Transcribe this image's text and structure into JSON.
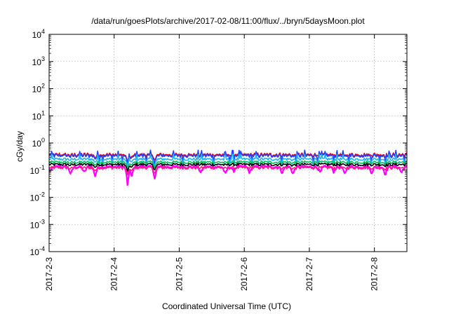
{
  "chart_data": {
    "type": "line",
    "title": "/data/run/goesPlots/archive/2017-02-08/11:00/flux/../bryn/5daysMoon.plot",
    "xlabel": "Coordinated Universal Time (UTC)",
    "ylabel": "cGy/day",
    "yscale": "log",
    "ylim": [
      0.0001,
      10000
    ],
    "xlim": [
      "2017-02-03",
      "2017-02-08 12:00"
    ],
    "grid": true,
    "x_ticks": [
      "2017-2-3",
      "2017-2-4",
      "2017-2-5",
      "2017-2-6",
      "2017-2-7",
      "2017-2-8"
    ],
    "y_ticks": [
      {
        "value": 0.0001,
        "base": "10",
        "exp": "-4"
      },
      {
        "value": 0.001,
        "base": "10",
        "exp": "-3"
      },
      {
        "value": 0.01,
        "base": "10",
        "exp": "-2"
      },
      {
        "value": 0.1,
        "base": "10",
        "exp": "-1"
      },
      {
        "value": 1,
        "base": "10",
        "exp": "0"
      },
      {
        "value": 10,
        "base": "10",
        "exp": "1"
      },
      {
        "value": 100,
        "base": "10",
        "exp": "2"
      },
      {
        "value": 1000,
        "base": "10",
        "exp": "3"
      },
      {
        "value": 10000,
        "base": "10",
        "exp": "4"
      }
    ],
    "series": [
      {
        "color": "#ff00ff",
        "base": 0.135,
        "spiky": true
      },
      {
        "color": "#e8001c",
        "base": 0.38
      },
      {
        "color": "#2040ff",
        "base": 0.35
      },
      {
        "color": "#20b4f0",
        "base": 0.26
      },
      {
        "color": "#00c060",
        "base": 0.2
      },
      {
        "color": "#000000",
        "base": 0.165
      },
      {
        "color": "#ff1493",
        "base": 0.125
      }
    ],
    "dips": [
      {
        "x": "2017-02-03 00:30",
        "value": 0.09
      },
      {
        "x": "2017-02-03 08:00",
        "value": 0.07
      },
      {
        "x": "2017-02-03 13:00",
        "value": 0.08
      },
      {
        "x": "2017-02-03 17:00",
        "value": 0.06
      },
      {
        "x": "2017-02-04 05:00",
        "value": 0.022
      },
      {
        "x": "2017-02-04 06:30",
        "value": 0.06
      },
      {
        "x": "2017-02-04 15:00",
        "value": 0.05
      },
      {
        "x": "2017-02-05 08:00",
        "value": 0.08
      },
      {
        "x": "2017-02-05 17:00",
        "value": 0.07
      },
      {
        "x": "2017-02-05 20:00",
        "value": 0.09
      },
      {
        "x": "2017-02-06 02:00",
        "value": 0.08
      },
      {
        "x": "2017-02-06 14:00",
        "value": 0.08
      },
      {
        "x": "2017-02-06 18:00",
        "value": 0.07
      },
      {
        "x": "2017-02-07 04:00",
        "value": 0.08
      },
      {
        "x": "2017-02-07 09:00",
        "value": 0.09
      },
      {
        "x": "2017-02-07 13:00",
        "value": 0.07
      },
      {
        "x": "2017-02-07 23:00",
        "value": 0.08
      },
      {
        "x": "2017-02-08 04:00",
        "value": 0.07
      },
      {
        "x": "2017-02-08 10:00",
        "value": 0.08
      }
    ]
  }
}
